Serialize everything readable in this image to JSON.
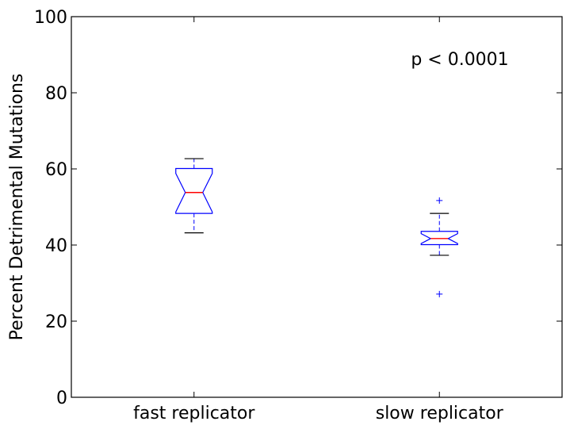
{
  "chart_data": {
    "type": "box",
    "title": "",
    "xlabel": "",
    "ylabel": "Percent Detrimental Mutations",
    "ylim": [
      0,
      100
    ],
    "yticks": [
      0,
      20,
      40,
      60,
      80,
      100
    ],
    "categories": [
      "fast replicator",
      "slow replicator"
    ],
    "boxes": [
      {
        "category": "fast replicator",
        "whisker_low": 43.2,
        "q1": 48.3,
        "notch_low": 48.7,
        "median": 53.8,
        "notch_high": 58.8,
        "q3": 60.1,
        "whisker_high": 62.7,
        "outliers": []
      },
      {
        "category": "slow replicator",
        "whisker_low": 37.3,
        "q1": 40.1,
        "notch_low": 40.4,
        "median": 41.7,
        "notch_high": 43.0,
        "q3": 43.6,
        "whisker_high": 48.3,
        "outliers": [
          51.7,
          27.1
        ]
      }
    ],
    "annotation": "p < 0.0001",
    "grid": false,
    "colors": {
      "box": "#0000ff",
      "median": "#ff0000",
      "whisker_cap": "#000000",
      "outlier": "#0000ff"
    }
  }
}
